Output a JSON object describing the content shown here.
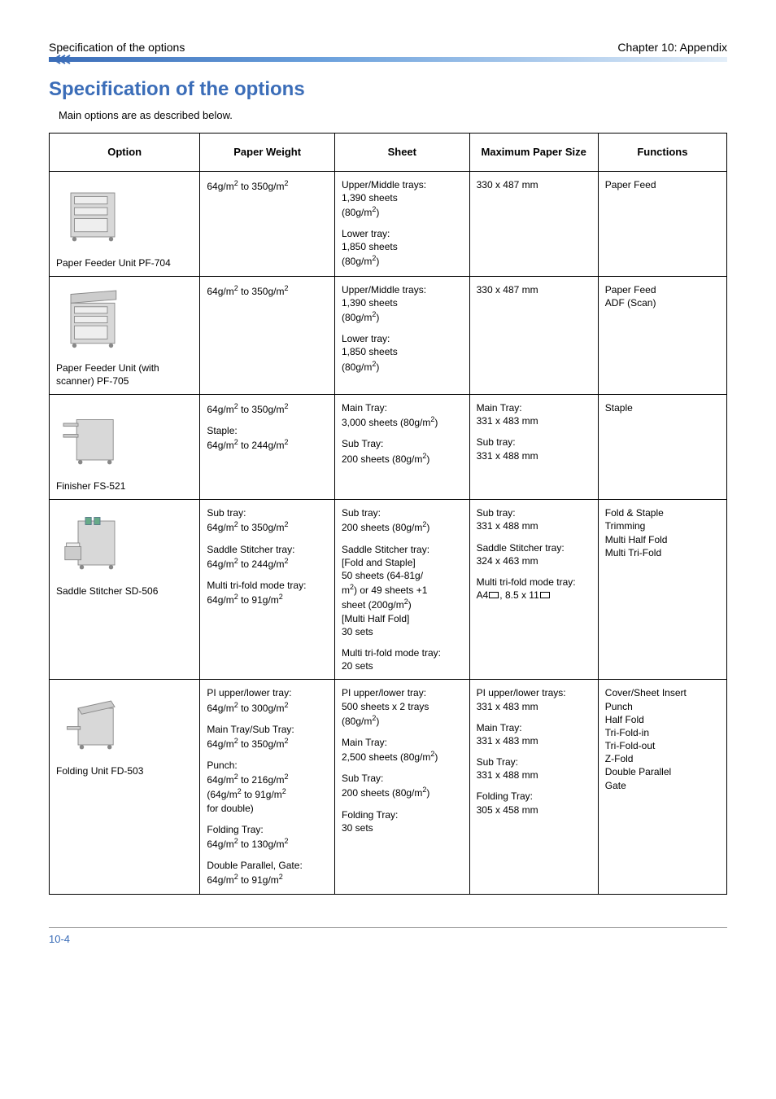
{
  "header": {
    "left": "Specification of the options",
    "right": "Chapter 10: Appendix"
  },
  "title": "Specification of the options",
  "intro": "Main options are as described below.",
  "table": {
    "headers": [
      "Option",
      "Paper Weight",
      "Sheet",
      "Maximum Paper Size",
      "Functions"
    ],
    "rows": [
      {
        "option_name": "Paper Feeder Unit PF-704",
        "icon": "pf704",
        "paper_weight": [
          {
            "t": "64g/m",
            "sup": "2",
            "after": " to 350g/m",
            "sup2": "2"
          }
        ],
        "sheet": [
          {
            "line": "Upper/Middle trays:"
          },
          {
            "line": "1,390 sheets"
          },
          {
            "paren_open": "(80g/m",
            "sup": "2",
            "paren_close": ")"
          },
          {
            "blank": true
          },
          {
            "line": "Lower tray:"
          },
          {
            "line": "1,850 sheets"
          },
          {
            "paren_open": "(80g/m",
            "sup": "2",
            "paren_close": ")"
          }
        ],
        "max_size": [
          {
            "line": "330 x 487 mm"
          }
        ],
        "functions": [
          {
            "line": "Paper Feed"
          }
        ]
      },
      {
        "option_name": "Paper Feeder Unit (with scanner) PF-705",
        "icon": "pf705",
        "paper_weight": [
          {
            "t": "64g/m",
            "sup": "2",
            "after": " to 350g/m",
            "sup2": "2"
          }
        ],
        "sheet": [
          {
            "line": "Upper/Middle trays:"
          },
          {
            "line": "1,390 sheets"
          },
          {
            "paren_open": "(80g/m",
            "sup": "2",
            "paren_close": ")"
          },
          {
            "blank": true
          },
          {
            "line": "Lower tray:"
          },
          {
            "line": "1,850 sheets"
          },
          {
            "paren_open": "(80g/m",
            "sup": "2",
            "paren_close": ")"
          }
        ],
        "max_size": [
          {
            "line": "330 x 487 mm"
          }
        ],
        "functions": [
          {
            "line": "Paper Feed"
          },
          {
            "line": "ADF (Scan)"
          }
        ]
      },
      {
        "option_name": "Finisher FS-521",
        "icon": "fs521",
        "paper_weight": [
          {
            "t": "64g/m",
            "sup": "2",
            "after": " to 350g/m",
            "sup2": "2"
          },
          {
            "blank": true
          },
          {
            "line": "Staple:"
          },
          {
            "t": "64g/m",
            "sup": "2",
            "after": " to 244g/m",
            "sup2": "2"
          }
        ],
        "sheet": [
          {
            "line": "Main Tray:"
          },
          {
            "t": "3,000 sheets (80g/m",
            "sup": "2",
            "after": ")"
          },
          {
            "blank": true
          },
          {
            "line": "Sub Tray:"
          },
          {
            "t": "200 sheets (80g/m",
            "sup": "2",
            "after": ")"
          }
        ],
        "max_size": [
          {
            "line": "Main Tray:"
          },
          {
            "line": "331 x 483 mm"
          },
          {
            "blank": true
          },
          {
            "line": "Sub tray:"
          },
          {
            "line": "331 x 488 mm"
          }
        ],
        "functions": [
          {
            "line": "Staple"
          }
        ]
      },
      {
        "option_name": "Saddle Stitcher SD-506",
        "icon": "sd506",
        "paper_weight": [
          {
            "line": "Sub tray:"
          },
          {
            "t": "64g/m",
            "sup": "2",
            "after": " to 350g/m",
            "sup2": "2"
          },
          {
            "blank": true
          },
          {
            "line": "Saddle Stitcher tray:"
          },
          {
            "t": "64g/m",
            "sup": "2",
            "after": " to 244g/m",
            "sup2": "2"
          },
          {
            "blank": true
          },
          {
            "line": "Multi tri-fold mode tray:"
          },
          {
            "t": "64g/m",
            "sup": "2",
            "after": " to 91g/m",
            "sup2": "2"
          }
        ],
        "sheet": [
          {
            "line": "Sub tray:"
          },
          {
            "t": "200 sheets (80g/m",
            "sup": "2",
            "after": ")"
          },
          {
            "blank": true
          },
          {
            "line": "Saddle Stitcher tray:"
          },
          {
            "line": "[Fold and Staple]"
          },
          {
            "line": "50 sheets (64-81g/"
          },
          {
            "t": "m",
            "sup": "2",
            "after": ") or 49 sheets +1"
          },
          {
            "t": "sheet (200g/m",
            "sup": "2",
            "after": ")"
          },
          {
            "line": "[Multi Half Fold]"
          },
          {
            "line": "30 sets"
          },
          {
            "blank": true
          },
          {
            "line": "Multi tri-fold mode tray:"
          },
          {
            "line": "20 sets"
          }
        ],
        "max_size": [
          {
            "line": "Sub tray:"
          },
          {
            "line": "331 x 488 mm"
          },
          {
            "blank": true
          },
          {
            "line": "Saddle Stitcher tray:"
          },
          {
            "line": "324 x 463 mm"
          },
          {
            "blank": true
          },
          {
            "line": "Multi tri-fold mode tray:"
          },
          {
            "landscape": "A4",
            "and": "8.5 x 11"
          }
        ],
        "functions": [
          {
            "line": "Fold & Staple"
          },
          {
            "line": "Trimming"
          },
          {
            "line": "Multi Half Fold"
          },
          {
            "line": "Multi Tri-Fold"
          }
        ]
      },
      {
        "option_name": "Folding Unit FD-503",
        "icon": "fd503",
        "paper_weight": [
          {
            "line": "PI upper/lower tray:"
          },
          {
            "t": "64g/m",
            "sup": "2",
            "after": " to 300g/m",
            "sup2": "2"
          },
          {
            "blank": true
          },
          {
            "line": "Main Tray/Sub Tray:"
          },
          {
            "t": "64g/m",
            "sup": "2",
            "after": " to 350g/m",
            "sup2": "2"
          },
          {
            "blank": true
          },
          {
            "line": "Punch:"
          },
          {
            "t": "64g/m",
            "sup": "2",
            "after": " to 216g/m",
            "sup2": "2"
          },
          {
            "t": "(64g/m",
            "sup": "2",
            "after": " to 91g/m",
            "sup2": "2"
          },
          {
            "line": "for double)"
          },
          {
            "blank": true
          },
          {
            "line": "Folding Tray:"
          },
          {
            "t": "64g/m",
            "sup": "2",
            "after": " to 130g/m",
            "sup2": "2"
          },
          {
            "blank": true
          },
          {
            "line": "Double Parallel, Gate:"
          },
          {
            "t": "64g/m",
            "sup": "2",
            "after": " to 91g/m",
            "sup2": "2"
          }
        ],
        "sheet": [
          {
            "line": "PI upper/lower tray:"
          },
          {
            "line": "500 sheets x 2 trays"
          },
          {
            "paren_open": "(80g/m",
            "sup": "2",
            "paren_close": ")"
          },
          {
            "blank": true
          },
          {
            "line": "Main Tray:"
          },
          {
            "t": "2,500 sheets (80g/m",
            "sup": "2",
            "after": ")"
          },
          {
            "blank": true
          },
          {
            "line": "Sub Tray:"
          },
          {
            "t": "200 sheets (80g/m",
            "sup": "2",
            "after": ")"
          },
          {
            "blank": true
          },
          {
            "line": "Folding Tray:"
          },
          {
            "line": "30 sets"
          }
        ],
        "max_size": [
          {
            "line": "PI upper/lower trays:"
          },
          {
            "line": "331 x 483 mm"
          },
          {
            "blank": true
          },
          {
            "line": "Main Tray:"
          },
          {
            "line": "331 x 483 mm"
          },
          {
            "blank": true
          },
          {
            "line": "Sub Tray:"
          },
          {
            "line": "331 x 488 mm"
          },
          {
            "blank": true
          },
          {
            "line": "Folding Tray:"
          },
          {
            "line": "305 x 458 mm"
          }
        ],
        "functions": [
          {
            "line": "Cover/Sheet Insert"
          },
          {
            "line": "Punch"
          },
          {
            "line": "Half Fold"
          },
          {
            "line": "Tri-Fold-in"
          },
          {
            "line": "Tri-Fold-out"
          },
          {
            "line": "Z-Fold"
          },
          {
            "line": "Double Parallel"
          },
          {
            "line": "Gate"
          }
        ]
      }
    ]
  },
  "footer": {
    "page": "10-4"
  },
  "colors": {
    "accent": "#3b6db8",
    "border": "#000000",
    "bg": "#ffffff"
  }
}
